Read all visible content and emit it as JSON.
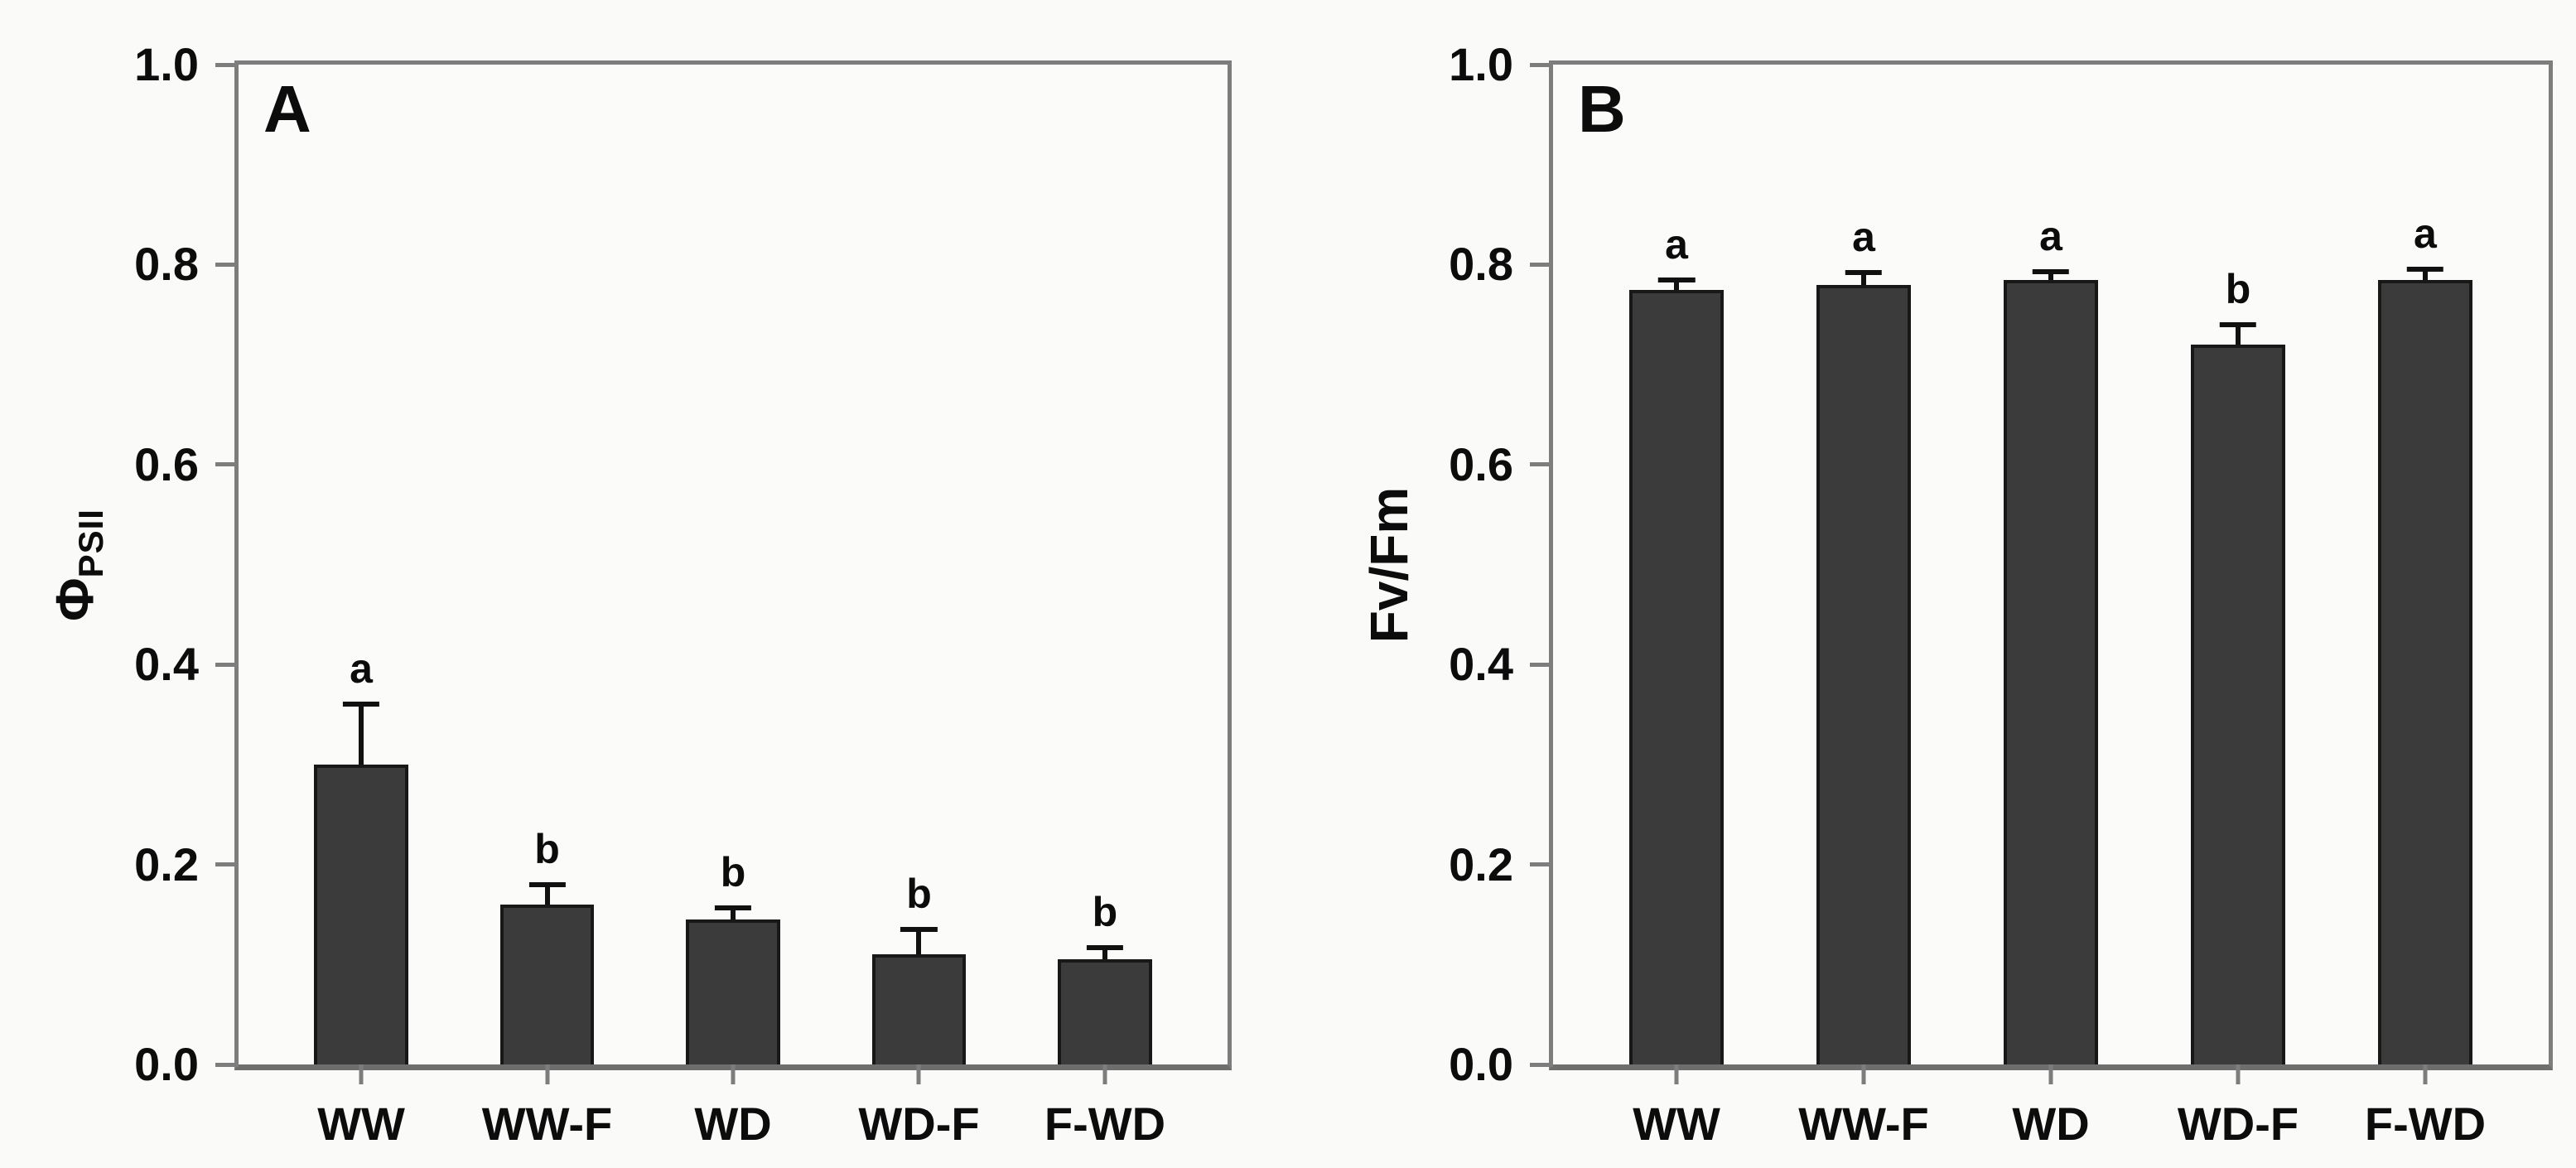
{
  "figure": {
    "background": "#fafaf8",
    "plot_background": "#fbfbfa",
    "bar_fill": "#3b3b3b",
    "bar_border": "#181818",
    "error_color": "#111111",
    "axis_color": "#7d7d7d",
    "text_color": "#0c0c0c"
  },
  "chart_data": [
    {
      "type": "bar",
      "panel_label": "A",
      "ylabel": "Φ_PSII",
      "ylabel_main": "Φ",
      "ylabel_sub": "PSII",
      "xlabel": "",
      "categories": [
        "WW",
        "WW-F",
        "WD",
        "WD-F",
        "F-WD"
      ],
      "values": [
        0.3,
        0.16,
        0.145,
        0.11,
        0.105
      ],
      "errors": [
        0.06,
        0.02,
        0.012,
        0.025,
        0.012
      ],
      "sig_letters": [
        "a",
        "b",
        "b",
        "b",
        "b"
      ],
      "ylim": [
        0.0,
        1.0
      ],
      "yticks": [
        "0.0",
        "0.2",
        "0.4",
        "0.6",
        "0.8",
        "1.0"
      ],
      "grid": false,
      "legend": "none",
      "error_bars": "upper, with cap"
    },
    {
      "type": "bar",
      "panel_label": "B",
      "ylabel": "Fv/Fm",
      "ylabel_main": "Fv/Fm",
      "ylabel_sub": "",
      "xlabel": "",
      "categories": [
        "WW",
        "WW-F",
        "WD",
        "WD-F",
        "F-WD"
      ],
      "values": [
        0.775,
        0.78,
        0.785,
        0.72,
        0.785
      ],
      "errors": [
        0.01,
        0.012,
        0.008,
        0.02,
        0.01
      ],
      "sig_letters": [
        "a",
        "a",
        "a",
        "b",
        "a"
      ],
      "ylim": [
        0.0,
        1.0
      ],
      "yticks": [
        "0.0",
        "0.2",
        "0.4",
        "0.6",
        "0.8",
        "1.0"
      ],
      "grid": false,
      "legend": "none",
      "error_bars": "upper, with cap"
    }
  ]
}
